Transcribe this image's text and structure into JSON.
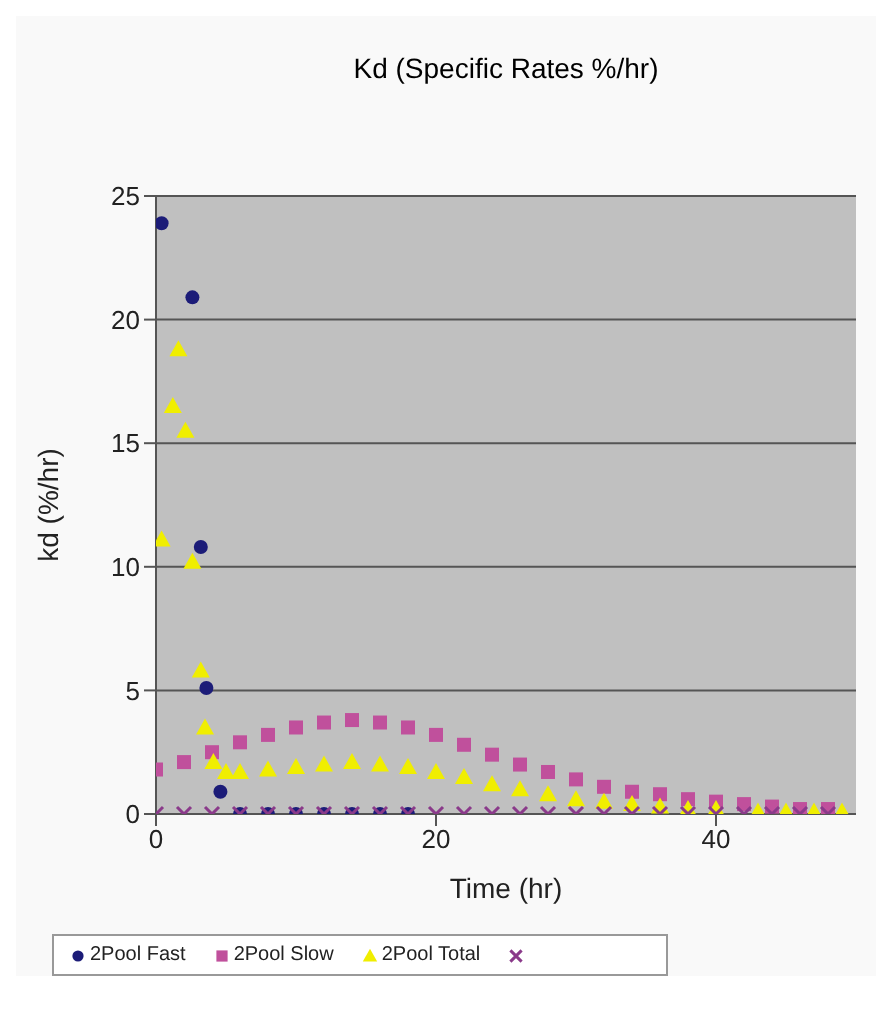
{
  "chart_data": {
    "type": "scatter",
    "title": "Kd (Specific Rates %/hr)",
    "xlabel": "Time (hr)",
    "ylabel": "kd (%/hr)",
    "xlim": [
      0,
      50
    ],
    "xticks": [
      0,
      20,
      40
    ],
    "ylim": [
      0,
      25
    ],
    "yticks": [
      0,
      5,
      10,
      15,
      20,
      25
    ],
    "grid": "y",
    "legend": "bottom",
    "series": [
      {
        "name": "2Pool Fast",
        "color": "#1c1c78",
        "marker": "circle",
        "x": [
          0.4,
          2.6,
          3.2,
          3.6,
          4.6,
          6,
          8,
          10,
          12,
          14,
          16,
          18
        ],
        "values": [
          23.9,
          20.9,
          10.8,
          5.1,
          0.9,
          0,
          0,
          0,
          0,
          0,
          0,
          0
        ]
      },
      {
        "name": "2Pool Slow",
        "color": "#c0509c",
        "marker": "square",
        "x": [
          0,
          2,
          4,
          6,
          8,
          10,
          12,
          14,
          16,
          18,
          20,
          22,
          24,
          26,
          28,
          30,
          32,
          34,
          36,
          38,
          40,
          42,
          44,
          46,
          48
        ],
        "values": [
          1.8,
          2.1,
          2.5,
          2.9,
          3.2,
          3.5,
          3.7,
          3.8,
          3.7,
          3.5,
          3.2,
          2.8,
          2.4,
          2.0,
          1.7,
          1.4,
          1.1,
          0.9,
          0.8,
          0.6,
          0.5,
          0.4,
          0.3,
          0.2,
          0.2
        ]
      },
      {
        "name": "2Pool Total",
        "color": "#f0ee00",
        "marker": "triangle",
        "x": [
          0.4,
          1.2,
          1.6,
          2.1,
          2.6,
          3.2,
          3.5,
          4.1,
          5,
          6,
          8,
          10,
          12,
          14,
          16,
          18,
          20,
          22,
          24,
          26,
          28,
          30,
          32,
          34,
          36,
          38,
          40,
          43,
          45,
          47,
          49
        ],
        "values": [
          11.1,
          16.5,
          18.8,
          15.5,
          10.2,
          5.8,
          3.5,
          2.1,
          1.7,
          1.7,
          1.8,
          1.9,
          2.0,
          2.1,
          2.0,
          1.9,
          1.7,
          1.5,
          1.2,
          1.0,
          0.8,
          0.6,
          0.5,
          0.4,
          0.3,
          0.2,
          0.2,
          0.1,
          0.1,
          0.1,
          0.1
        ]
      },
      {
        "color": "#8a3a8a",
        "marker": "cross",
        "x": [
          0,
          2,
          4,
          6,
          8,
          10,
          12,
          14,
          16,
          18,
          20,
          22,
          24,
          26,
          28,
          30,
          32,
          34,
          36,
          38,
          40,
          42,
          44,
          46,
          48
        ],
        "values": [
          0,
          0,
          0,
          0,
          0,
          0,
          0,
          0,
          0,
          0,
          0,
          0,
          0,
          0,
          0,
          0,
          0,
          0,
          0,
          0,
          0,
          0,
          0,
          0,
          0
        ]
      }
    ]
  }
}
